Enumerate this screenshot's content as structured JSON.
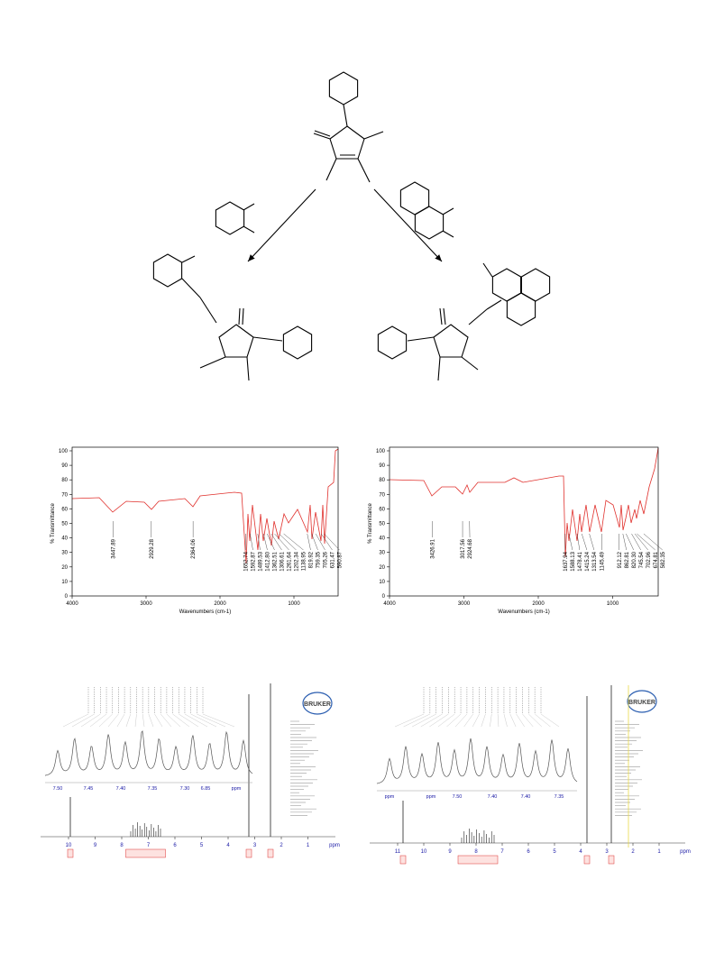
{
  "ir_spectra": [
    {
      "y_label": "% Transmittance",
      "x_label": "Wavenumbers (cm-1)",
      "yticks": [
        100,
        90,
        80,
        70,
        60,
        50,
        40,
        30,
        20,
        10,
        0
      ],
      "xticks": [
        4000,
        3000,
        2000,
        1000
      ],
      "peaks": [
        "3447.89",
        "2929.28",
        "2364.06",
        "1652.74",
        "1592.87",
        "1489.53",
        "1412.80",
        "1362.51",
        "1306.61",
        "1261.64",
        "1202.34",
        "1138.95",
        "819.92",
        "759.35",
        "705.26",
        "631.47",
        "590.87"
      ]
    },
    {
      "y_label": "% Transmittance",
      "x_label": "Wavenumbers (cm-1)",
      "yticks": [
        100,
        90,
        80,
        70,
        60,
        50,
        40,
        30,
        20,
        10,
        0
      ],
      "xticks": [
        4000,
        3000,
        2000,
        1000
      ],
      "peaks": [
        "3426.91",
        "3017.56",
        "2924.68",
        "1637.94",
        "1588.13",
        "1478.41",
        "1415.24",
        "1313.54",
        "1145.49",
        "912.12",
        "862.81",
        "820.30",
        "745.54",
        "702.96",
        "674.81",
        "582.35"
      ]
    }
  ],
  "nmr_spectra": [
    {
      "logo": "BRUKER",
      "axis_ticks": [
        "10",
        "9",
        "8",
        "7",
        "6",
        "5",
        "4",
        "3",
        "2",
        "1"
      ],
      "axis_unit": "ppm",
      "inset_ticks": [
        "7.50",
        "7.45",
        "7.40",
        "7.35",
        "7.30",
        "6.85",
        "ppm"
      ]
    },
    {
      "logo": "BRUKER",
      "axis_ticks": [
        "11",
        "10",
        "9",
        "8",
        "7",
        "6",
        "5",
        "4",
        "3",
        "2",
        "1"
      ],
      "axis_unit": "ppm",
      "inset_ticks": [
        "ppm",
        "ppm",
        "7.50",
        "7.40",
        "7.40",
        "7.35"
      ]
    }
  ]
}
